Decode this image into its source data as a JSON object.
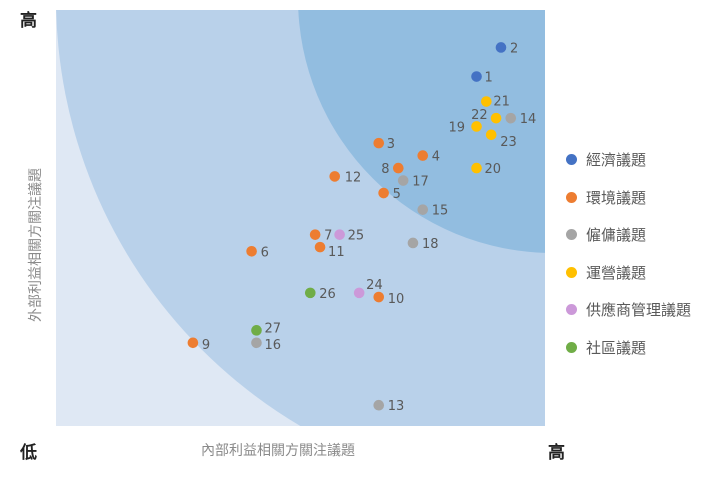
{
  "colors": {
    "band_outer": "#dfe8f4",
    "band_middle": "#b9d1ea",
    "band_inner": "#92bde0"
  },
  "chart_data": {
    "type": "scatter",
    "title": "",
    "xlabel": "內部利益相關方關注議題",
    "ylabel": "外部利益相關方關注議題",
    "x_tick_labels": {
      "low": "低",
      "high": "高"
    },
    "y_tick_labels": {
      "high": "高"
    },
    "xlim": [
      0,
      100
    ],
    "ylim": [
      0,
      100
    ],
    "grid": false,
    "legend_position": "right",
    "series": [
      {
        "name": "經濟議題",
        "color": "#4472c4",
        "points": [
          {
            "label": "1",
            "x": 86,
            "y": 84
          },
          {
            "label": "2",
            "x": 91,
            "y": 91
          }
        ]
      },
      {
        "name": "環境議題",
        "color": "#ed7d31",
        "points": [
          {
            "label": "3",
            "x": 66,
            "y": 68
          },
          {
            "label": "4",
            "x": 75,
            "y": 65
          },
          {
            "label": "5",
            "x": 67,
            "y": 56
          },
          {
            "label": "6",
            "x": 40,
            "y": 42
          },
          {
            "label": "7",
            "x": 53,
            "y": 46
          },
          {
            "label": "8",
            "x": 70,
            "y": 62
          },
          {
            "label": "9",
            "x": 28,
            "y": 20
          },
          {
            "label": "10",
            "x": 66,
            "y": 31
          },
          {
            "label": "11",
            "x": 54,
            "y": 43
          },
          {
            "label": "12",
            "x": 57,
            "y": 60
          }
        ]
      },
      {
        "name": "僱傭議題",
        "color": "#a5a5a5",
        "points": [
          {
            "label": "13",
            "x": 66,
            "y": 5
          },
          {
            "label": "14",
            "x": 93,
            "y": 74
          },
          {
            "label": "15",
            "x": 75,
            "y": 52
          },
          {
            "label": "16",
            "x": 41,
            "y": 20
          },
          {
            "label": "17",
            "x": 71,
            "y": 59
          },
          {
            "label": "18",
            "x": 73,
            "y": 44
          }
        ]
      },
      {
        "name": "運營議題",
        "color": "#ffc000",
        "points": [
          {
            "label": "19",
            "x": 86,
            "y": 72
          },
          {
            "label": "20",
            "x": 86,
            "y": 62
          },
          {
            "label": "21",
            "x": 88,
            "y": 78
          },
          {
            "label": "22",
            "x": 90,
            "y": 74
          },
          {
            "label": "23",
            "x": 89,
            "y": 70
          }
        ]
      },
      {
        "name": "供應商管理議題",
        "color": "#cc99d9",
        "points": [
          {
            "label": "24",
            "x": 62,
            "y": 32
          },
          {
            "label": "25",
            "x": 58,
            "y": 46
          }
        ]
      },
      {
        "name": "社區議題",
        "color": "#70ad47",
        "points": [
          {
            "label": "26",
            "x": 52,
            "y": 32
          },
          {
            "label": "27",
            "x": 41,
            "y": 23
          }
        ]
      }
    ]
  }
}
